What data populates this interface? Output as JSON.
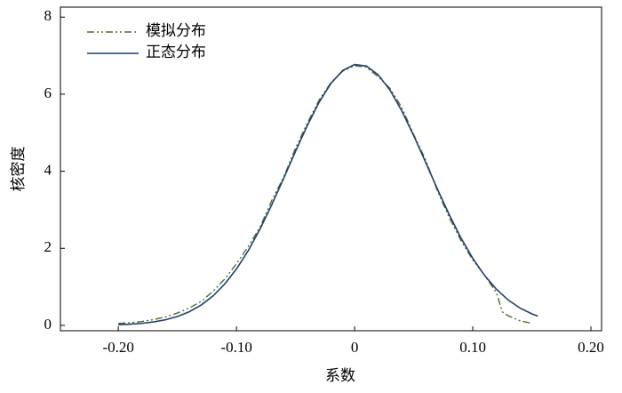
{
  "chart_data": {
    "type": "line",
    "xlabel": "系数",
    "ylabel": "核密度",
    "xlim": [
      -0.249,
      0.209
    ],
    "ylim": [
      -0.14,
      8.26
    ],
    "xticks": [
      {
        "value": -0.2,
        "label": "-0.20"
      },
      {
        "value": -0.1,
        "label": "-0.10"
      },
      0,
      {
        "value": 0.1,
        "label": "0.10"
      },
      {
        "value": 0.2,
        "label": "0.20"
      }
    ],
    "yticks": [
      0,
      2,
      4,
      6,
      8
    ],
    "legend": "upper left",
    "series": [
      {
        "name": "模拟分布",
        "color": "#556b2f",
        "style": "dashdot",
        "x": [
          -0.2,
          -0.19,
          -0.18,
          -0.17,
          -0.16,
          -0.15,
          -0.14,
          -0.13,
          -0.12,
          -0.11,
          -0.1,
          -0.09,
          -0.08,
          -0.07,
          -0.06,
          -0.05,
          -0.04,
          -0.03,
          -0.02,
          -0.01,
          0,
          0.01,
          0.02,
          0.03,
          0.04,
          0.05,
          0.06,
          0.07,
          0.08,
          0.09,
          0.1,
          0.11,
          0.12,
          0.125,
          0.13,
          0.14,
          0.15
        ],
        "values": [
          0.05,
          0.07,
          0.1,
          0.15,
          0.22,
          0.32,
          0.45,
          0.62,
          0.88,
          1.2,
          1.6,
          2.05,
          2.55,
          3.25,
          3.85,
          4.6,
          5.25,
          5.85,
          6.3,
          6.6,
          6.74,
          6.7,
          6.45,
          6.15,
          5.65,
          4.95,
          4.3,
          3.5,
          2.8,
          2.2,
          1.7,
          1.3,
          0.85,
          0.35,
          0.25,
          0.12,
          0.05
        ]
      },
      {
        "name": "正态分布",
        "color": "#1f3f6e",
        "style": "solid",
        "x": [
          -0.2,
          -0.19,
          -0.18,
          -0.17,
          -0.16,
          -0.15,
          -0.14,
          -0.13,
          -0.12,
          -0.11,
          -0.1,
          -0.09,
          -0.08,
          -0.07,
          -0.06,
          -0.05,
          -0.04,
          -0.03,
          -0.02,
          -0.01,
          0,
          0.01,
          0.02,
          0.03,
          0.04,
          0.05,
          0.06,
          0.07,
          0.08,
          0.09,
          0.1,
          0.11,
          0.12,
          0.13,
          0.14,
          0.15,
          0.155
        ],
        "values": [
          0.017,
          0.031,
          0.053,
          0.089,
          0.146,
          0.23,
          0.353,
          0.525,
          0.76,
          1.071,
          1.463,
          1.941,
          2.504,
          3.138,
          3.819,
          4.517,
          5.189,
          5.792,
          6.281,
          6.617,
          6.771,
          6.732,
          6.502,
          6.102,
          5.562,
          4.926,
          4.238,
          3.543,
          2.877,
          2.269,
          1.739,
          1.295,
          0.937,
          0.658,
          0.449,
          0.298,
          0.24
        ]
      }
    ]
  }
}
